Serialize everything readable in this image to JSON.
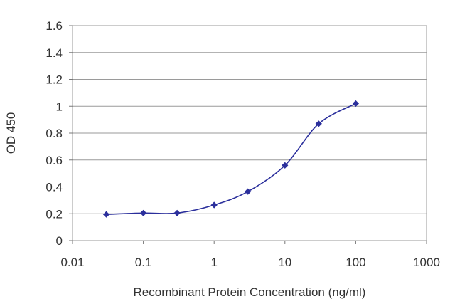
{
  "chart_data": {
    "type": "line",
    "xlabel": "Recombinant Protein Concentration (ng/ml)",
    "ylabel": "OD 450",
    "x_scale": "log",
    "xlim": [
      0.01,
      1000
    ],
    "ylim": [
      0,
      1.6
    ],
    "grid": "horizontal",
    "x_tick_values": [
      0.01,
      0.1,
      1,
      10,
      100,
      1000
    ],
    "x_tick_labels": [
      "0.01",
      "0.1",
      "1",
      "10",
      "100",
      "1000"
    ],
    "y_tick_values": [
      0,
      0.2,
      0.4,
      0.6,
      0.8,
      1,
      1.2,
      1.4,
      1.6
    ],
    "y_tick_labels": [
      "0",
      "0.2",
      "0.4",
      "0.6",
      "0.8",
      "1",
      "1.2",
      "1.4",
      "1.6"
    ],
    "series": [
      {
        "color": "#2b2f9c",
        "x": [
          0.03,
          0.1,
          0.3,
          1,
          3,
          10,
          30,
          100
        ],
        "y": [
          0.195,
          0.205,
          0.205,
          0.265,
          0.365,
          0.56,
          0.87,
          1.02
        ]
      }
    ]
  }
}
